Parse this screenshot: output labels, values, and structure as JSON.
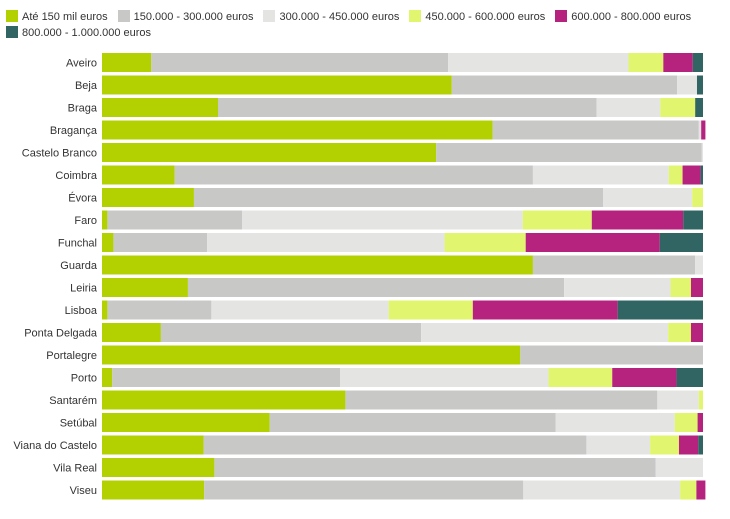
{
  "chart_data": {
    "type": "bar",
    "orientation": "horizontal",
    "stacked": "percent",
    "legend_position": "top-left",
    "grid": false,
    "xlim": [
      0,
      100
    ],
    "title": "",
    "xlabel": "",
    "ylabel": "",
    "categories": [
      "Aveiro",
      "Beja",
      "Braga",
      "Bragança",
      "Castelo Branco",
      "Coimbra",
      "Évora",
      "Faro",
      "Funchal",
      "Guarda",
      "Leiria",
      "Lisboa",
      "Ponta Delgada",
      "Portalegre",
      "Porto",
      "Santarém",
      "Setúbal",
      "Viana do Castelo",
      "Vila Real",
      "Viseu"
    ],
    "series": [
      {
        "name": "Até 150 mil euros",
        "color": "#b3d100",
        "values": [
          8.2,
          58.2,
          19.3,
          65.0,
          55.6,
          12.1,
          15.3,
          0.9,
          1.9,
          71.7,
          14.3,
          0.9,
          9.8,
          69.6,
          1.7,
          40.5,
          27.9,
          16.9,
          18.7,
          17.0
        ]
      },
      {
        "name": "150.000 - 300.000 euros",
        "color": "#c8c8c7",
        "values": [
          49.4,
          37.5,
          63.0,
          34.3,
          44.2,
          59.6,
          68.1,
          22.4,
          15.6,
          27.0,
          62.6,
          17.3,
          43.3,
          30.4,
          37.9,
          51.9,
          47.6,
          63.7,
          73.4,
          53.1
        ]
      },
      {
        "name": "300.000 - 450.000 euros",
        "color": "#e4e4e3",
        "values": [
          30.0,
          3.3,
          10.6,
          0.4,
          0.2,
          22.6,
          14.8,
          46.7,
          39.5,
          1.3,
          17.7,
          29.5,
          41.1,
          0.0,
          34.7,
          6.9,
          19.8,
          10.6,
          7.9,
          26.1
        ]
      },
      {
        "name": "450.000 - 600.000 euros",
        "color": "#e2f56e",
        "values": [
          5.8,
          0.0,
          5.8,
          0.0,
          0.0,
          2.3,
          1.8,
          11.5,
          13.5,
          0.0,
          3.4,
          14.0,
          3.8,
          0.0,
          10.6,
          0.7,
          3.8,
          4.8,
          0.0,
          2.7
        ]
      },
      {
        "name": "600.000 - 800.000 euros",
        "color": "#b5237e",
        "values": [
          4.9,
          0.0,
          0.0,
          0.7,
          0.0,
          3.0,
          0.0,
          15.2,
          22.3,
          0.0,
          2.0,
          24.1,
          2.0,
          0.0,
          10.7,
          0.0,
          0.9,
          3.2,
          0.0,
          1.5
        ]
      },
      {
        "name": "800.000 - 1.000.000 euros",
        "color": "#306563",
        "values": [
          1.7,
          1.0,
          1.3,
          0.0,
          0.0,
          0.4,
          0.0,
          3.3,
          7.2,
          0.0,
          0.0,
          14.2,
          0.0,
          0.0,
          4.4,
          0.0,
          0.0,
          0.8,
          0.0,
          0.0
        ]
      }
    ]
  }
}
